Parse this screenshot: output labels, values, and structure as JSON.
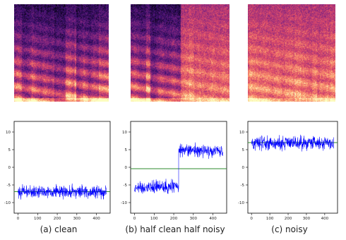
{
  "figure": {
    "captions": [
      "(a) clean",
      "(b) half clean half noisy",
      "(c) noisy"
    ]
  },
  "colors": {
    "signal": "#0000ff",
    "reference_line": "#2e8b2e",
    "axes": "#000000",
    "spectrogram_cmap": [
      "#000004",
      "#3b0f70",
      "#8c2981",
      "#de4968",
      "#fe9f6d",
      "#fcfdbf"
    ]
  },
  "chart_data": [
    {
      "type": "heatmap",
      "description": "spectrogram",
      "title": "",
      "profile": "clean"
    },
    {
      "type": "heatmap",
      "description": "spectrogram",
      "title": "",
      "profile": "half"
    },
    {
      "type": "heatmap",
      "description": "spectrogram",
      "title": "",
      "profile": "noisy"
    },
    {
      "type": "line",
      "title": "",
      "xlabel": "",
      "ylabel": "",
      "xlim": [
        -20,
        470
      ],
      "ylim": [
        -13,
        13
      ],
      "xticks": [
        0,
        100,
        200,
        300,
        400
      ],
      "yticks": [
        -10,
        -5,
        0,
        5,
        10
      ],
      "grid": false,
      "series": [
        {
          "segments": [
            {
              "from": 0,
              "to": 450,
              "mean": -6.9,
              "amplitude": 1.1
            }
          ]
        }
      ],
      "hline": -6.9
    },
    {
      "type": "line",
      "title": "",
      "xlabel": "",
      "ylabel": "",
      "xlim": [
        -20,
        470
      ],
      "ylim": [
        -13,
        13
      ],
      "xticks": [
        0,
        100,
        200,
        300,
        400
      ],
      "yticks": [
        -10,
        -5,
        0,
        5,
        10
      ],
      "grid": false,
      "series": [
        {
          "segments": [
            {
              "from": 0,
              "to": 225,
              "mean": -5.5,
              "amplitude": 1.2
            },
            {
              "from": 225,
              "to": 450,
              "mean": 4.6,
              "amplitude": 1.1
            }
          ]
        }
      ],
      "hline": -0.4
    },
    {
      "type": "line",
      "title": "",
      "xlabel": "",
      "ylabel": "",
      "xlim": [
        -20,
        470
      ],
      "ylim": [
        -13,
        13
      ],
      "xticks": [
        0,
        100,
        200,
        300,
        400
      ],
      "yticks": [
        -10,
        -5,
        0,
        5,
        10
      ],
      "grid": false,
      "series": [
        {
          "segments": [
            {
              "from": 0,
              "to": 450,
              "mean": 6.9,
              "amplitude": 1.2
            }
          ]
        }
      ],
      "hline": 7.0
    }
  ]
}
